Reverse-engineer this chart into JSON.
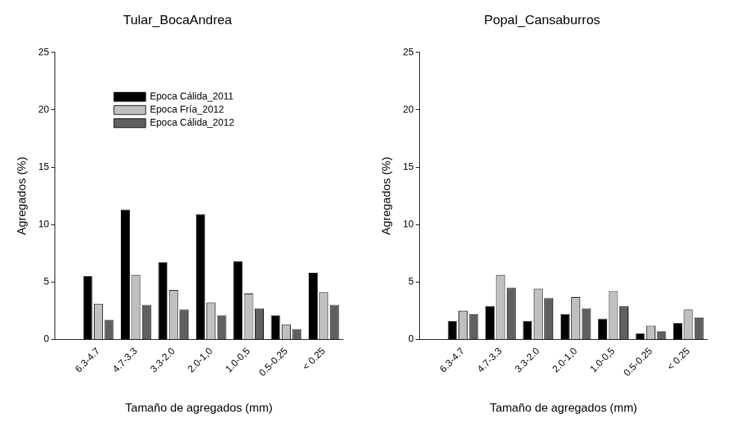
{
  "chart_data": [
    {
      "type": "bar",
      "title": "Tular_BocaAndrea",
      "xlabel": "Tamaño de agregados (mm)",
      "ylabel": "Agregados (%)",
      "categories": [
        "6.3-4.7",
        "4.7-3.3",
        "3.3-2.0",
        "2.0-1,0",
        "1.0-0,5",
        "0.5-0.25",
        "< 0.25"
      ],
      "ylim": [
        0,
        25
      ],
      "yticks": [
        0,
        5,
        10,
        15,
        20,
        25
      ],
      "grid": false,
      "legend": "top left",
      "series": [
        {
          "name": "Epoca Cálida_2011",
          "color": "#000000",
          "values": [
            5.5,
            11.3,
            6.7,
            10.9,
            6.8,
            2.1,
            5.8
          ]
        },
        {
          "name": "Epoca Fría_2012",
          "color": "#c0c0c0",
          "values": [
            3.1,
            5.6,
            4.3,
            3.2,
            4.0,
            1.3,
            4.1
          ]
        },
        {
          "name": "Epoca Cálida_2012",
          "color": "#606060",
          "values": [
            1.7,
            3.0,
            2.6,
            2.1,
            2.7,
            0.9,
            3.0
          ]
        }
      ]
    },
    {
      "type": "bar",
      "title": "Popal_Cansaburros",
      "xlabel": "Tamaño de agregados (mm)",
      "ylabel": "Agregados (%)",
      "categories": [
        "6.3-4.7",
        "4.7-3.3",
        "3.3-2.0",
        "2.0-1,0",
        "1.0-0,5",
        "0.5-0.25",
        "< 0.25"
      ],
      "ylim": [
        0,
        25
      ],
      "yticks": [
        0,
        5,
        10,
        15,
        20,
        25
      ],
      "grid": false,
      "legend": false,
      "series": [
        {
          "color": "#000000",
          "values": [
            1.6,
            2.9,
            1.6,
            2.2,
            1.8,
            0.5,
            1.4
          ]
        },
        {
          "color": "#c0c0c0",
          "values": [
            2.5,
            5.6,
            4.4,
            3.7,
            4.2,
            1.2,
            2.6
          ]
        },
        {
          "color": "#606060",
          "values": [
            2.2,
            4.5,
            3.6,
            2.7,
            2.9,
            0.7,
            1.9
          ]
        }
      ]
    }
  ]
}
